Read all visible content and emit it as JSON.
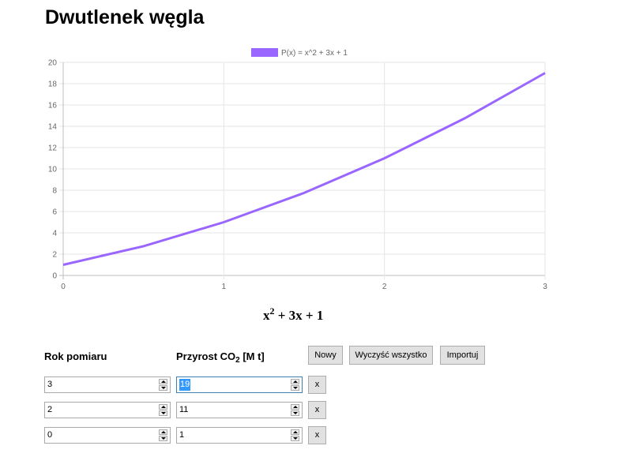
{
  "page": {
    "title": "Dwutlenek węgla"
  },
  "chart_data": {
    "type": "line",
    "legend": "P(x) = x^2 + 3x + 1",
    "legend_position": "top",
    "x": [
      0,
      3
    ],
    "series": [
      {
        "name": "P(x) = x^2 + 3x + 1",
        "color": "#9966ff",
        "points": [
          [
            0,
            1
          ],
          [
            0.5,
            2.75
          ],
          [
            1,
            5
          ],
          [
            1.5,
            7.75
          ],
          [
            2,
            11
          ],
          [
            2.5,
            14.75
          ],
          [
            3,
            19
          ]
        ]
      }
    ],
    "xlim": [
      0,
      3
    ],
    "ylim": [
      0,
      20
    ],
    "x_ticks": [
      "0",
      "1",
      "2",
      "3"
    ],
    "y_ticks": [
      "0",
      "2",
      "4",
      "6",
      "8",
      "10",
      "12",
      "14",
      "16",
      "18",
      "20"
    ],
    "grid": true
  },
  "formula": {
    "base": "x",
    "exponent": "2",
    "rest": " + 3x + 1"
  },
  "columns": {
    "year_label": "Rok pomiaru",
    "increase_label_prefix": "Przyrost CO",
    "increase_label_sub": "2",
    "increase_label_suffix": " [M t]"
  },
  "buttons": {
    "new": "Nowy",
    "clear_all": "Wyczyść wszystko",
    "import": "Importuj"
  },
  "rows": [
    {
      "year": "3",
      "value": "19",
      "delete": "x"
    },
    {
      "year": "2",
      "value": "11",
      "delete": "x"
    },
    {
      "year": "0",
      "value": "1",
      "delete": "x"
    }
  ]
}
